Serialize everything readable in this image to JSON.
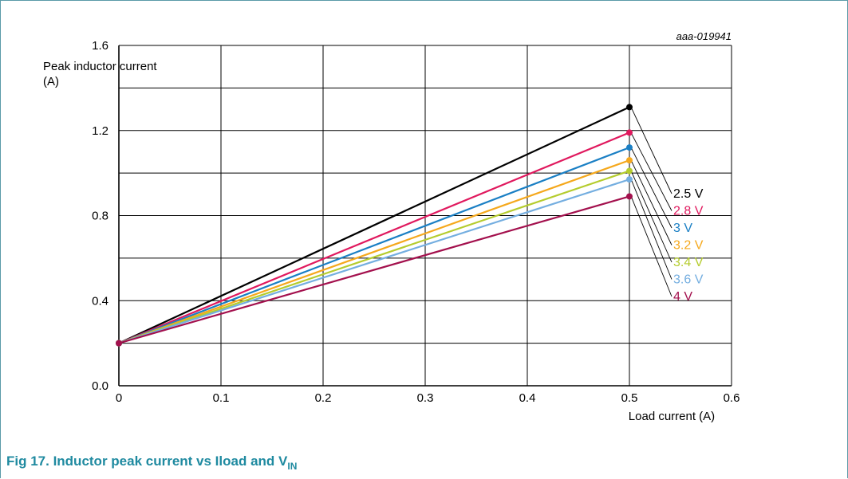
{
  "chart_data": {
    "type": "line",
    "title": "",
    "ref_id": "aaa-019941",
    "ylabel_line1": "Peak inductor current",
    "ylabel_line2": "(A)",
    "xlabel": "Load current (A)",
    "xlim": [
      0,
      0.6
    ],
    "ylim": [
      0,
      1.6
    ],
    "xticks": [
      "0",
      "0.1",
      "0.2",
      "0.3",
      "0.4",
      "0.5",
      "0.6"
    ],
    "yticks": [
      "0.0",
      "0.4",
      "0.8",
      "1.2",
      "1.6"
    ],
    "x_grid_step": 0.1,
    "y_grid_step": 0.2,
    "grid": true,
    "series": [
      {
        "name": "2.5 V",
        "color": "#000000",
        "x": [
          0,
          0.5
        ],
        "y": [
          0.2,
          1.31
        ]
      },
      {
        "name": "2.8 V",
        "color": "#e0195e",
        "x": [
          0,
          0.5
        ],
        "y": [
          0.2,
          1.19
        ]
      },
      {
        "name": "3 V",
        "color": "#1a7fc4",
        "x": [
          0,
          0.5
        ],
        "y": [
          0.2,
          1.12
        ]
      },
      {
        "name": "3.2 V",
        "color": "#f5a81c",
        "x": [
          0,
          0.5
        ],
        "y": [
          0.2,
          1.06
        ]
      },
      {
        "name": "3.4 V",
        "color": "#b5cc2e",
        "x": [
          0,
          0.5
        ],
        "y": [
          0.2,
          1.01
        ]
      },
      {
        "name": "3.6 V",
        "color": "#74aee0",
        "x": [
          0,
          0.5
        ],
        "y": [
          0.2,
          0.97
        ]
      },
      {
        "name": "4 V",
        "color": "#a3104d",
        "x": [
          0,
          0.5
        ],
        "y": [
          0.2,
          0.89
        ]
      }
    ]
  },
  "caption": {
    "text": "Fig 17.   Inductor peak current vs Iload and V",
    "sub": "IN"
  }
}
